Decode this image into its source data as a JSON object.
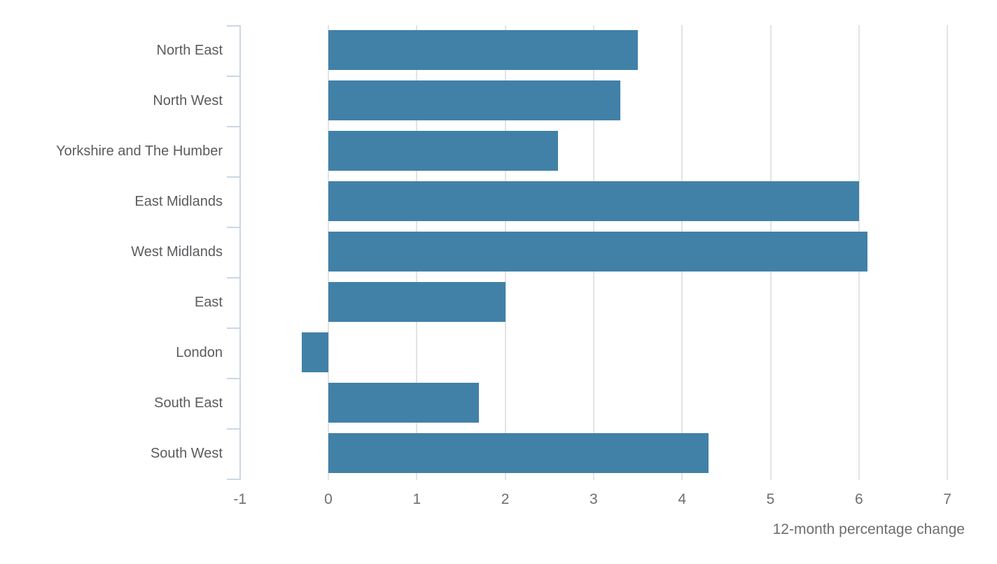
{
  "chart_data": {
    "type": "bar",
    "orientation": "horizontal",
    "title": "",
    "xlabel": "12-month percentage change",
    "ylabel": "",
    "categories": [
      "North East",
      "North West",
      "Yorkshire and The Humber",
      "East Midlands",
      "West Midlands",
      "East",
      "London",
      "South East",
      "South West"
    ],
    "values": [
      3.5,
      3.3,
      2.6,
      6.0,
      6.1,
      2.0,
      -0.3,
      1.7,
      4.3
    ],
    "xlim": [
      -1,
      7
    ],
    "xticks": [
      -1,
      0,
      1,
      2,
      3,
      4,
      5,
      6,
      7
    ],
    "grid": true,
    "legend": false
  },
  "colors": {
    "bar": "#4181a8",
    "axis_line": "#ccd6e8",
    "gridline": "#e3e3e3",
    "category_text": "#595b5e",
    "tick_text": "#6d6e71",
    "axis_title_text": "#6d6e71"
  }
}
